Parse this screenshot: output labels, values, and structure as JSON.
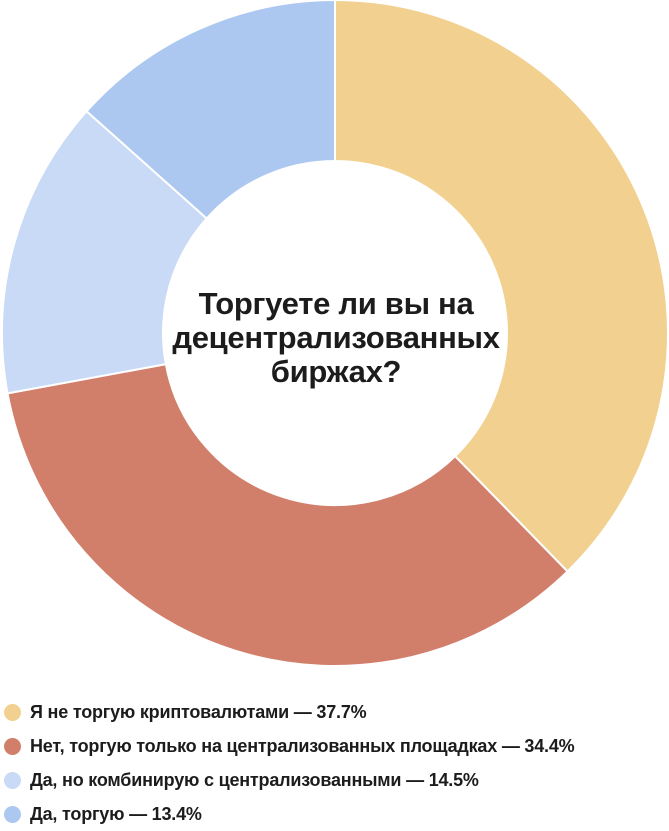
{
  "chart_data": {
    "type": "pie",
    "title": "Торгуете ли вы на децентрализованных биржах?",
    "slices": [
      {
        "label": "Я не торгую криптовалютами — 37.7%",
        "value": 37.7,
        "color": "#f2d08f"
      },
      {
        "label": "Нет, торгую только на централизованных площадках — 34.4%",
        "value": 34.4,
        "color": "#d17f6b"
      },
      {
        "label": "Да, но комбинирую с централизованными — 14.5%",
        "value": 14.5,
        "color": "#c9daf6"
      },
      {
        "label": "Да, торгую — 13.4%",
        "value": 13.4,
        "color": "#adc8f0"
      }
    ],
    "legend_position": "bottom-left"
  }
}
